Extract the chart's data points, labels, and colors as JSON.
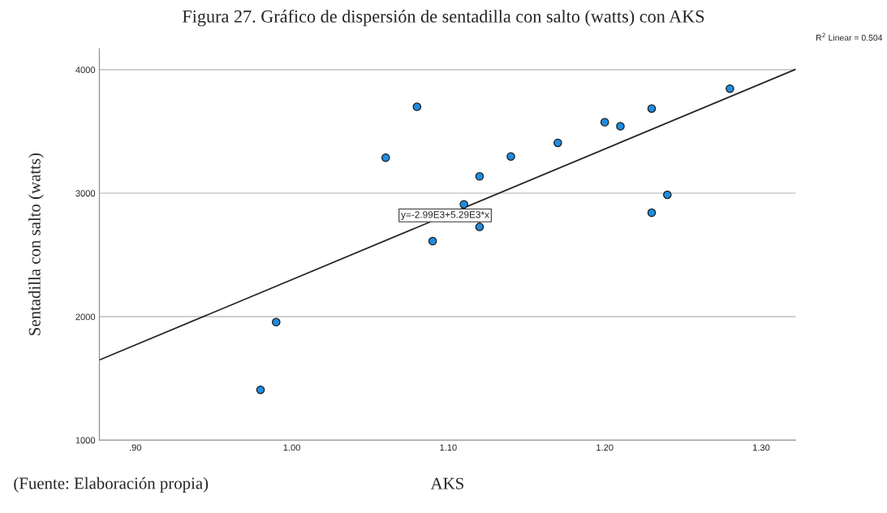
{
  "chart_data": {
    "type": "scatter",
    "title": "Figura 27. Gráfico de dispersión de sentadilla con salto (watts) con AKS",
    "xlabel": "AKS",
    "ylabel": "Sentadilla con salto (watts)",
    "annotations": [
      "R$^{2}$ Linear = 0.504",
      {
        "text": "y=-2.99E3+5.29E3*x",
        "x": 1.098,
        "y": 2820
      },
      "(Fuente: Elaboración propia)"
    ],
    "series": [
      {
        "color": "#1f8ce0",
        "x": [
          0.98,
          0.99,
          1.06,
          1.08,
          1.09,
          1.11,
          1.12,
          1.12,
          1.14,
          1.17,
          1.2,
          1.21,
          1.23,
          1.23,
          1.24,
          1.28
        ],
        "values": [
          1408,
          1956,
          3288,
          3700,
          2612,
          2910,
          3136,
          2728,
          3298,
          3408,
          3575,
          3542,
          3686,
          2842,
          2987,
          3847
        ],
        "marker": "circle"
      },
      {
        "type": "line",
        "color": "#262626",
        "x": [
          0.877,
          1.322
        ],
        "values": [
          1649,
          4003
        ],
        "line_style": "solid"
      }
    ],
    "xlim": [
      0.877,
      1.322
    ],
    "xticks": [
      {
        "value": 0.9,
        "label": ".90"
      },
      {
        "value": 1.0,
        "label": "1.00"
      },
      {
        "value": 1.1,
        "label": "1.10"
      },
      {
        "value": 1.2,
        "label": "1.20"
      },
      {
        "value": 1.3,
        "label": "1.30"
      }
    ],
    "ylim": [
      1000,
      4170
    ],
    "yticks": [
      1000,
      2000,
      3000,
      4000
    ],
    "grid": "y",
    "legend": false
  }
}
